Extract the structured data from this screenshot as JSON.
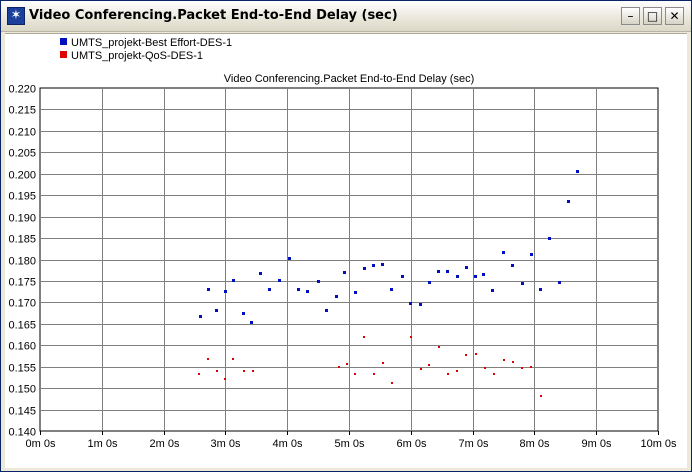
{
  "window": {
    "title": "Video Conferencing.Packet End-to-End Delay (sec)",
    "icons": [
      "app-icon",
      "minimize-icon",
      "maximize-icon",
      "close-icon"
    ]
  },
  "colors": {
    "series1": "#0010c0",
    "series2": "#e00000",
    "grid": "#808080"
  },
  "chart_data": {
    "type": "scatter",
    "title": "Video Conferencing.Packet End-to-End Delay (sec)",
    "xlabel": "",
    "ylabel": "",
    "xlim": [
      0,
      10
    ],
    "ylim": [
      0.14,
      0.22
    ],
    "grid": true,
    "legend_position": "top-left",
    "x_ticks": [
      "0m 0s",
      "1m 0s",
      "2m 0s",
      "3m 0s",
      "4m 0s",
      "5m 0s",
      "6m 0s",
      "7m 0s",
      "8m 0s",
      "9m 0s",
      "10m 0s"
    ],
    "y_ticks": [
      "0.140",
      "0.145",
      "0.150",
      "0.155",
      "0.160",
      "0.165",
      "0.170",
      "0.175",
      "0.180",
      "0.185",
      "0.190",
      "0.195",
      "0.200",
      "0.205",
      "0.210",
      "0.215",
      "0.220"
    ],
    "series": [
      {
        "name": "UMTS_projekt-Best Effort-DES-1",
        "points": [
          [
            2.6,
            0.1666
          ],
          [
            2.72,
            0.1729
          ],
          [
            2.86,
            0.1682
          ],
          [
            3.0,
            0.1726
          ],
          [
            3.13,
            0.175
          ],
          [
            3.3,
            0.1674
          ],
          [
            3.42,
            0.1653
          ],
          [
            3.57,
            0.1768
          ],
          [
            3.72,
            0.1729
          ],
          [
            3.87,
            0.1752
          ],
          [
            4.04,
            0.1802
          ],
          [
            4.18,
            0.1729
          ],
          [
            4.33,
            0.1726
          ],
          [
            4.5,
            0.1749
          ],
          [
            4.64,
            0.168
          ],
          [
            4.79,
            0.1714
          ],
          [
            4.93,
            0.1769
          ],
          [
            5.1,
            0.1723
          ],
          [
            5.25,
            0.1778
          ],
          [
            5.4,
            0.1786
          ],
          [
            5.55,
            0.1789
          ],
          [
            5.69,
            0.1731
          ],
          [
            5.86,
            0.176
          ],
          [
            6.0,
            0.1698
          ],
          [
            6.16,
            0.1694
          ],
          [
            6.3,
            0.1746
          ],
          [
            6.45,
            0.1773
          ],
          [
            6.6,
            0.1773
          ],
          [
            6.75,
            0.176
          ],
          [
            6.9,
            0.1781
          ],
          [
            7.05,
            0.176
          ],
          [
            7.18,
            0.1766
          ],
          [
            7.33,
            0.1728
          ],
          [
            7.5,
            0.1817
          ],
          [
            7.65,
            0.1786
          ],
          [
            7.8,
            0.1744
          ],
          [
            7.95,
            0.1812
          ],
          [
            8.1,
            0.1731
          ],
          [
            8.25,
            0.1848
          ],
          [
            8.4,
            0.1746
          ],
          [
            8.55,
            0.1935
          ],
          [
            8.7,
            0.2006
          ]
        ]
      },
      {
        "name": "UMTS_projekt-QoS-DES-1",
        "points": [
          [
            2.58,
            0.1532
          ],
          [
            2.72,
            0.1568
          ],
          [
            2.86,
            0.154
          ],
          [
            3.0,
            0.1522
          ],
          [
            3.13,
            0.1567
          ],
          [
            3.3,
            0.154
          ],
          [
            3.44,
            0.154
          ],
          [
            4.84,
            0.155
          ],
          [
            4.96,
            0.1556
          ],
          [
            5.1,
            0.1532
          ],
          [
            5.25,
            0.162
          ],
          [
            5.4,
            0.1533
          ],
          [
            5.55,
            0.1559
          ],
          [
            5.7,
            0.1512
          ],
          [
            6.0,
            0.162
          ],
          [
            6.16,
            0.1545
          ],
          [
            6.3,
            0.1553
          ],
          [
            6.45,
            0.1596
          ],
          [
            6.6,
            0.1533
          ],
          [
            6.75,
            0.154
          ],
          [
            6.9,
            0.1577
          ],
          [
            7.05,
            0.158
          ],
          [
            7.2,
            0.1548
          ],
          [
            7.35,
            0.1533
          ],
          [
            7.5,
            0.1566
          ],
          [
            7.65,
            0.1562
          ],
          [
            7.8,
            0.1548
          ],
          [
            7.95,
            0.155
          ],
          [
            8.1,
            0.1481
          ]
        ]
      }
    ]
  }
}
